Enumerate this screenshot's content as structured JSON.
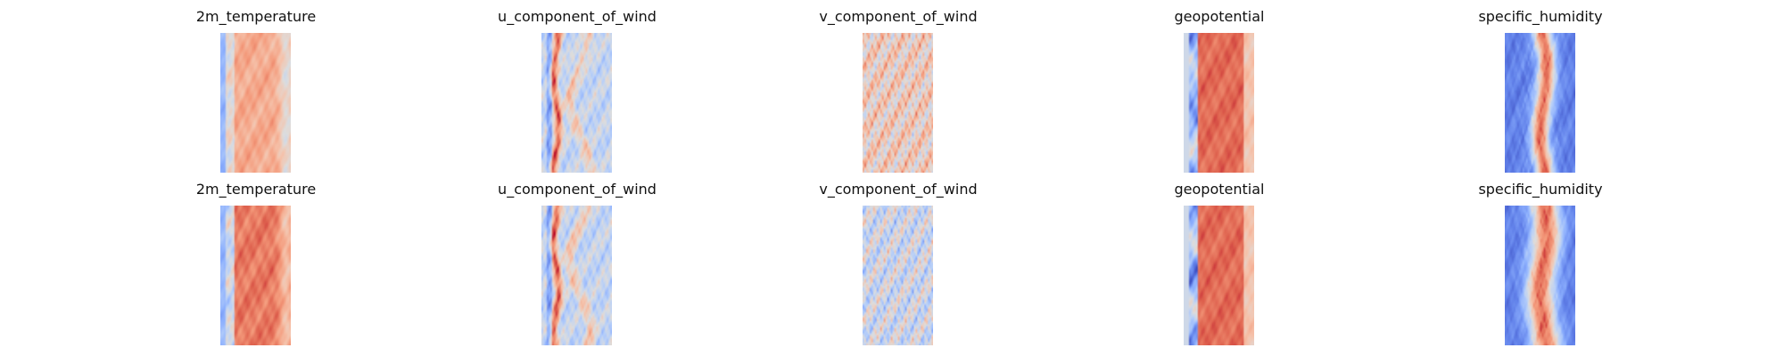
{
  "chart_data": {
    "type": "heatmap",
    "colormap": "coolwarm",
    "grid": false,
    "axes": "off",
    "layout": {
      "rows": 2,
      "cols": 5
    },
    "panels": [
      {
        "title": "2m_temperature",
        "row": 0,
        "col": 0,
        "variable": "2m_temperature"
      },
      {
        "title": "u_component_of_wind",
        "row": 0,
        "col": 1,
        "variable": "u_component_of_wind"
      },
      {
        "title": "v_component_of_wind",
        "row": 0,
        "col": 2,
        "variable": "v_component_of_wind"
      },
      {
        "title": "geopotential",
        "row": 0,
        "col": 3,
        "variable": "geopotential"
      },
      {
        "title": "specific_humidity",
        "row": 0,
        "col": 4,
        "variable": "specific_humidity"
      },
      {
        "title": "2m_temperature",
        "row": 1,
        "col": 0,
        "variable": "2m_temperature"
      },
      {
        "title": "u_component_of_wind",
        "row": 1,
        "col": 1,
        "variable": "u_component_of_wind"
      },
      {
        "title": "v_component_of_wind",
        "row": 1,
        "col": 2,
        "variable": "v_component_of_wind"
      },
      {
        "title": "geopotential",
        "row": 1,
        "col": 3,
        "variable": "geopotential"
      },
      {
        "title": "specific_humidity",
        "row": 1,
        "col": 4,
        "variable": "specific_humidity"
      }
    ]
  }
}
